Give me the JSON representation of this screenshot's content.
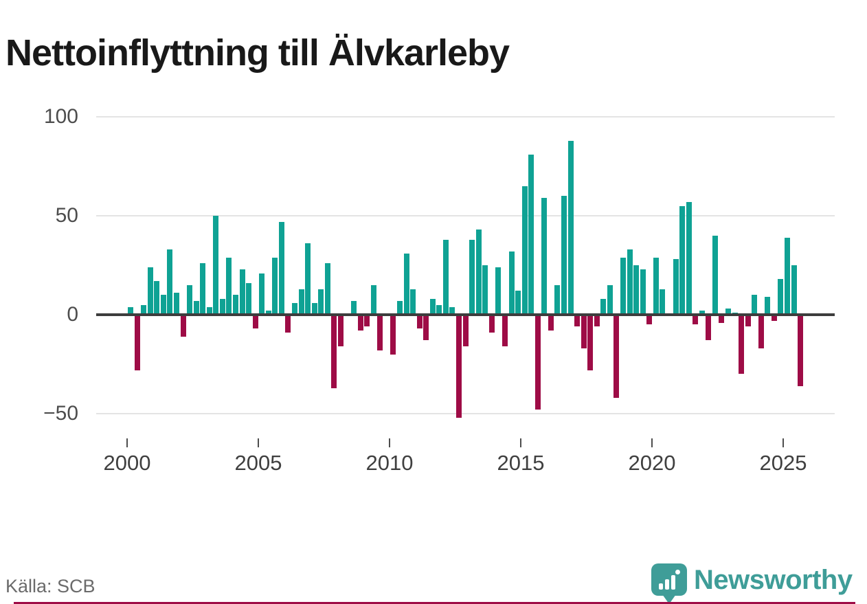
{
  "title": "Nettoinflyttning till Älvkarleby",
  "source": {
    "label": "Källa: SCB"
  },
  "branding": {
    "wordmark": "Newsworthy",
    "logo_icon": "newsworthy-pin-barchart-icon"
  },
  "colors": {
    "positive_bar": "#0fa294",
    "negative_bar": "#9e0c46",
    "brand_teal": "#3f9d98",
    "zero_axis": "#3d3d3d",
    "gridline": "#e4e4e4",
    "accent_stripe": "#9e0c46"
  },
  "chart_data": {
    "type": "bar",
    "title": "Nettoinflyttning till Älvkarleby",
    "frequency": "quarterly",
    "start_quarter": "2000 Q1",
    "end_quarter": "2025 Q3",
    "legend": false,
    "grid": true,
    "ylim": [
      -57,
      107
    ],
    "values": [
      4,
      -28,
      5,
      24,
      17,
      10,
      33,
      11,
      -11,
      15,
      7,
      26,
      4,
      50,
      8,
      29,
      10,
      23,
      16,
      -7,
      21,
      2,
      29,
      47,
      -9,
      6,
      13,
      36,
      6,
      13,
      26,
      -37,
      -16,
      0,
      7,
      -8,
      -6,
      15,
      -18,
      0,
      -20,
      7,
      31,
      13,
      -7,
      -13,
      8,
      5,
      38,
      4,
      -52,
      -16,
      38,
      43,
      25,
      -9,
      24,
      -16,
      32,
      12,
      65,
      81,
      -48,
      59,
      -8,
      15,
      60,
      88,
      -6,
      -17,
      -28,
      -6,
      8,
      15,
      -42,
      29,
      33,
      25,
      23,
      -5,
      29,
      13,
      0,
      28,
      55,
      57,
      -5,
      2,
      -13,
      40,
      -4,
      3,
      1,
      -30,
      -6,
      10,
      -17,
      9,
      -3,
      18,
      39,
      25,
      -36
    ],
    "x_ticks": [
      {
        "label": "2000",
        "year": 2000
      },
      {
        "label": "2005",
        "year": 2005
      },
      {
        "label": "2010",
        "year": 2010
      },
      {
        "label": "2015",
        "year": 2015
      },
      {
        "label": "2020",
        "year": 2020
      },
      {
        "label": "2025",
        "year": 2025
      }
    ],
    "y_ticks": [
      {
        "label": "100",
        "value": 100
      },
      {
        "label": "50",
        "value": 50
      },
      {
        "label": "0",
        "value": 0
      },
      {
        "label": "−50",
        "value": -50
      }
    ]
  }
}
